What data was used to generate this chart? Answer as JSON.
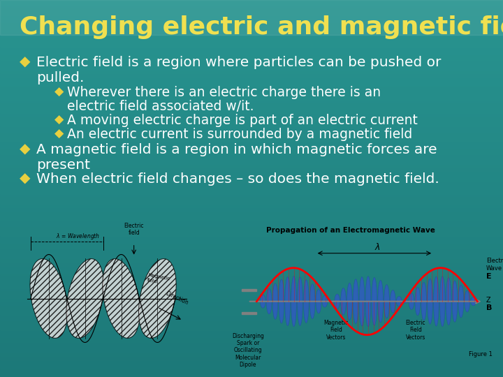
{
  "title": "Changing electric and magnetic fields",
  "title_color": "#F0E050",
  "title_fontsize": 26,
  "bg_color1": "#1c7a78",
  "bg_color2": "#2a9490",
  "bg_color3": "#1a6a68",
  "bullet_color": "#E8D040",
  "text_color": "#FFFFFF",
  "bullet1_line1": "Electric field is a region where particles can be pushed or",
  "bullet1_line2": "pulled.",
  "sub1a_line1": "Wherever there is an electric charge there is an",
  "sub1a_line2": "electric field associated w/it.",
  "sub1b": "A moving electric charge is part of an electric current",
  "sub1c": "An electric current is surrounded by a magnetic field",
  "bullet2_line1": "A magnetic field is a region in which magnetic forces are",
  "bullet2_line2": "present",
  "bullet3": "When electric field changes – so does the magnetic field.",
  "main_fontsize": 14.5,
  "sub_fontsize": 13.5,
  "diamond": "◆"
}
